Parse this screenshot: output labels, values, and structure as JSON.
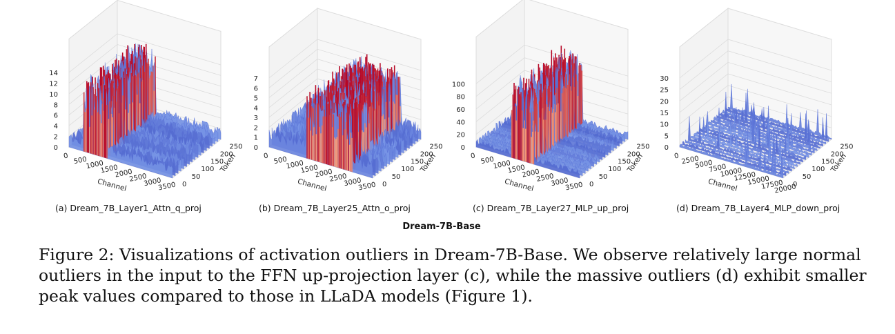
{
  "chart_data": [
    {
      "type": "surface3d",
      "label": "(a) Dream_7B_Layer1_Attn_q_proj",
      "xlabel": "Channel",
      "ylabel": "Token",
      "z_ticks": [
        "0",
        "2",
        "4",
        "6",
        "8",
        "10",
        "12",
        "14"
      ],
      "x_ticks": [
        "0",
        "500",
        "1000",
        "1500",
        "2000",
        "2500",
        "3000",
        "3500"
      ],
      "y_ticks": [
        "0",
        "50",
        "100",
        "150",
        "200",
        "250"
      ],
      "xlim": [
        0,
        3584
      ],
      "ylim": [
        0,
        256
      ],
      "zlim": [
        0,
        14
      ],
      "baseline_level": 2,
      "outlier_channel_range": [
        500,
        1350
      ],
      "outlier_peak": 14
    },
    {
      "type": "surface3d",
      "label": "(b) Dream_7B_Layer25_Attn_o_proj",
      "xlabel": "Channel",
      "ylabel": "Token",
      "z_ticks": [
        "0",
        "1",
        "2",
        "3",
        "4",
        "5",
        "6",
        "7"
      ],
      "x_ticks": [
        "0",
        "500",
        "1000",
        "1500",
        "2000",
        "2500",
        "3000",
        "3500"
      ],
      "y_ticks": [
        "0",
        "50",
        "100",
        "150",
        "200",
        "250"
      ],
      "xlim": [
        0,
        3584
      ],
      "ylim": [
        0,
        256
      ],
      "zlim": [
        0,
        7
      ],
      "baseline_level": 1.5,
      "outlier_channel_range": [
        1300,
        2900
      ],
      "outlier_peak": 7
    },
    {
      "type": "surface3d",
      "label": "(c) Dream_7B_Layer27_MLP_up_proj",
      "xlabel": "Channel",
      "ylabel": "Token",
      "z_ticks": [
        "0",
        "20",
        "40",
        "60",
        "80",
        "100"
      ],
      "x_ticks": [
        "0",
        "500",
        "1000",
        "1500",
        "2000",
        "2500",
        "3000",
        "3500"
      ],
      "y_ticks": [
        "0",
        "50",
        "100",
        "150",
        "200",
        "250"
      ],
      "xlim": [
        0,
        3584
      ],
      "ylim": [
        0,
        256
      ],
      "zlim": [
        0,
        120
      ],
      "baseline_level": 10,
      "outlier_channel_range": [
        1200,
        2000
      ],
      "outlier_peak": 120
    },
    {
      "type": "surface3d",
      "label": "(d) Dream_7B_Layer4_MLP_down_proj",
      "xlabel": "Channel",
      "ylabel": "Token",
      "z_ticks": [
        "0",
        "5",
        "10",
        "15",
        "20",
        "25",
        "30"
      ],
      "x_ticks": [
        "0",
        "2500",
        "5000",
        "7500",
        "10000",
        "12500",
        "15000",
        "17500",
        "20000"
      ],
      "y_ticks": [
        "0",
        "50",
        "100",
        "150",
        "200",
        "250"
      ],
      "xlim": [
        0,
        18944
      ],
      "ylim": [
        0,
        256
      ],
      "zlim": [
        0,
        30
      ],
      "baseline_level": 2,
      "outlier_channel_range": [
        12000,
        12100
      ],
      "outlier_peak": 30
    }
  ],
  "figure_title": "Dream-7B-Base",
  "caption": {
    "line1": "Figure 2: Visualizations of activation outliers in Dream-7B-Base. We observe relatively large normal",
    "line2": "outliers in the input to the FFN up-projection layer (c), while the massive outliers (d) exhibit smaller",
    "line3": "peak values compared to those in LLaDA models (Figure 1)."
  }
}
